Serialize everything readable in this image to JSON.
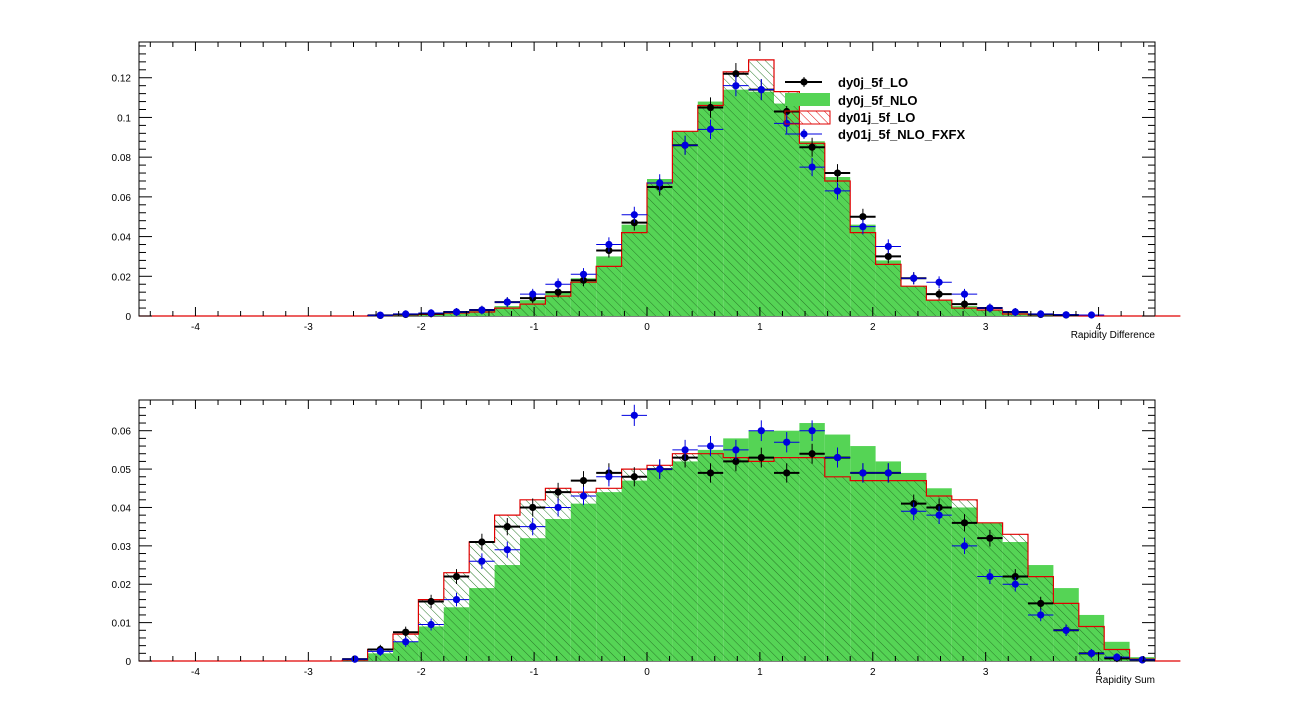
{
  "legend": {
    "placement": "top-right (upper panel)",
    "entries": [
      {
        "label": "dy0j_5f_LO",
        "style": "markers",
        "color": "#000000"
      },
      {
        "label": "dy0j_5f_NLO",
        "style": "filled",
        "color": "#55d455"
      },
      {
        "label": "dy01j_5f_LO",
        "style": "hatched-outline",
        "color": "#e00000"
      },
      {
        "label": "dy01j_5f_NLO_FXFX",
        "style": "markers",
        "color": "#0000e0"
      }
    ]
  },
  "colors": {
    "nlo_fill": "#55d455",
    "hatch_line": "#2a7a2a",
    "lo01_line": "#e00000",
    "lo0_marker": "#000000",
    "fxfx_marker": "#0000e0",
    "axis": "#000000"
  },
  "chart_data": [
    {
      "type": "bar",
      "title": "",
      "xlabel": "Rapidity Difference",
      "ylabel": "",
      "xlim": [
        -4.5,
        4.5
      ],
      "ylim": [
        0,
        0.138
      ],
      "grid": false,
      "bin_edges_start": -4.5,
      "bin_width": 0.225,
      "x_ticks": [
        -4,
        -3,
        -2,
        -1,
        0,
        1,
        2,
        3,
        4
      ],
      "y_ticks": [
        0,
        0.02,
        0.04,
        0.06,
        0.08,
        0.1,
        0.12
      ],
      "y_tick_labels": [
        "0",
        "0.02",
        "0.04",
        "0.06",
        "0.08",
        "0.1",
        "0.12"
      ],
      "series": [
        {
          "name": "dy0j_5f_NLO",
          "style": "filled",
          "values": [
            0,
            0,
            0,
            0,
            0,
            0,
            0,
            0,
            0,
            0.0003,
            0.0006,
            0.001,
            0.0018,
            0.003,
            0.005,
            0.008,
            0.012,
            0.019,
            0.03,
            0.046,
            0.069,
            0.093,
            0.108,
            0.114,
            0.113,
            0.107,
            0.088,
            0.07,
            0.046,
            0.028,
            0.015,
            0.008,
            0.005,
            0.003,
            0.002,
            0.001,
            0.0005,
            0.0002,
            0,
            0,
            0
          ]
        },
        {
          "name": "dy01j_5f_LO",
          "style": "hatched-outline",
          "values": [
            0,
            0,
            0,
            0,
            0,
            0,
            0,
            0,
            0,
            0.0002,
            0.0005,
            0.0008,
            0.0015,
            0.002,
            0.004,
            0.006,
            0.01,
            0.017,
            0.025,
            0.042,
            0.067,
            0.093,
            0.106,
            0.123,
            0.129,
            0.113,
            0.087,
            0.068,
            0.042,
            0.026,
            0.015,
            0.008,
            0.004,
            0.003,
            0.001,
            0.0005,
            0.0002,
            0,
            0,
            0,
            0
          ]
        },
        {
          "name": "dy0j_5f_LO",
          "style": "markers",
          "values": [
            null,
            null,
            null,
            null,
            null,
            null,
            null,
            null,
            null,
            0.0003,
            0.0008,
            0.0012,
            0.002,
            0.003,
            0.007,
            0.009,
            0.012,
            0.018,
            0.033,
            0.047,
            0.065,
            0.086,
            0.105,
            0.122,
            0.114,
            0.103,
            0.085,
            0.072,
            0.05,
            0.03,
            0.019,
            0.011,
            0.006,
            0.004,
            0.002,
            0.0008,
            0.0005,
            null,
            null,
            null,
            null
          ]
        },
        {
          "name": "dy01j_5f_NLO_FXFX",
          "style": "markers",
          "values": [
            null,
            null,
            null,
            null,
            null,
            null,
            null,
            null,
            null,
            0.0004,
            0.001,
            0.0015,
            0.002,
            0.003,
            0.007,
            0.011,
            0.016,
            0.021,
            0.036,
            0.051,
            0.067,
            0.086,
            0.094,
            0.116,
            0.114,
            0.097,
            0.075,
            0.063,
            0.045,
            0.035,
            0.019,
            0.017,
            0.011,
            0.004,
            0.002,
            0.001,
            0.0006,
            0.0005,
            null,
            null,
            null
          ]
        }
      ]
    },
    {
      "type": "bar",
      "title": "",
      "xlabel": "Rapidity Sum",
      "ylabel": "",
      "xlim": [
        -4.5,
        4.5
      ],
      "ylim": [
        0,
        0.068
      ],
      "grid": false,
      "bin_edges_start": -4.5,
      "bin_width": 0.225,
      "x_ticks": [
        -4,
        -3,
        -2,
        -1,
        0,
        1,
        2,
        3,
        4
      ],
      "y_ticks": [
        0,
        0.01,
        0.02,
        0.03,
        0.04,
        0.05,
        0.06
      ],
      "y_tick_labels": [
        "0",
        "0.01",
        "0.02",
        "0.03",
        "0.04",
        "0.05",
        "0.06"
      ],
      "series": [
        {
          "name": "dy0j_5f_NLO",
          "style": "filled",
          "values": [
            0,
            0,
            0,
            0,
            0,
            0,
            0,
            0,
            0.0003,
            0.002,
            0.005,
            0.009,
            0.014,
            0.019,
            0.025,
            0.032,
            0.037,
            0.041,
            0.044,
            0.047,
            0.05,
            0.052,
            0.055,
            0.058,
            0.06,
            0.06,
            0.062,
            0.059,
            0.056,
            0.052,
            0.049,
            0.045,
            0.04,
            0.036,
            0.031,
            0.025,
            0.019,
            0.012,
            0.005,
            0.001,
            0
          ]
        },
        {
          "name": "dy01j_5f_LO",
          "style": "hatched-outline",
          "values": [
            0,
            0,
            0,
            0,
            0,
            0,
            0,
            0,
            0.0002,
            0.003,
            0.007,
            0.016,
            0.023,
            0.031,
            0.038,
            0.042,
            0.045,
            0.044,
            0.045,
            0.05,
            0.051,
            0.054,
            0.054,
            0.053,
            0.052,
            0.053,
            0.053,
            0.048,
            0.047,
            0.047,
            0.047,
            0.043,
            0.042,
            0.036,
            0.033,
            0.022,
            0.015,
            0.009,
            0.003,
            0.0005,
            0
          ]
        },
        {
          "name": "dy0j_5f_LO",
          "style": "markers",
          "values": [
            null,
            null,
            null,
            null,
            null,
            null,
            null,
            null,
            0.0005,
            0.003,
            0.0075,
            0.0155,
            0.022,
            0.031,
            0.035,
            0.04,
            0.044,
            0.047,
            0.049,
            0.048,
            0.05,
            0.053,
            0.049,
            0.052,
            0.053,
            0.049,
            0.054,
            0.053,
            0.049,
            0.049,
            0.041,
            0.04,
            0.036,
            0.032,
            0.022,
            0.015,
            0.008,
            0.002,
            0.0007,
            0.0003,
            null
          ]
        },
        {
          "name": "dy01j_5f_NLO_FXFX",
          "style": "markers",
          "values": [
            null,
            null,
            null,
            null,
            null,
            null,
            null,
            null,
            0.0005,
            0.0025,
            0.005,
            0.0095,
            0.016,
            0.026,
            0.029,
            0.035,
            0.04,
            0.043,
            0.048,
            0.064,
            0.05,
            0.055,
            0.056,
            0.055,
            0.06,
            0.057,
            0.06,
            0.053,
            0.049,
            0.049,
            0.039,
            0.038,
            0.03,
            0.022,
            0.02,
            0.012,
            0.008,
            0.002,
            0.001,
            0.0003,
            null
          ]
        }
      ]
    }
  ]
}
